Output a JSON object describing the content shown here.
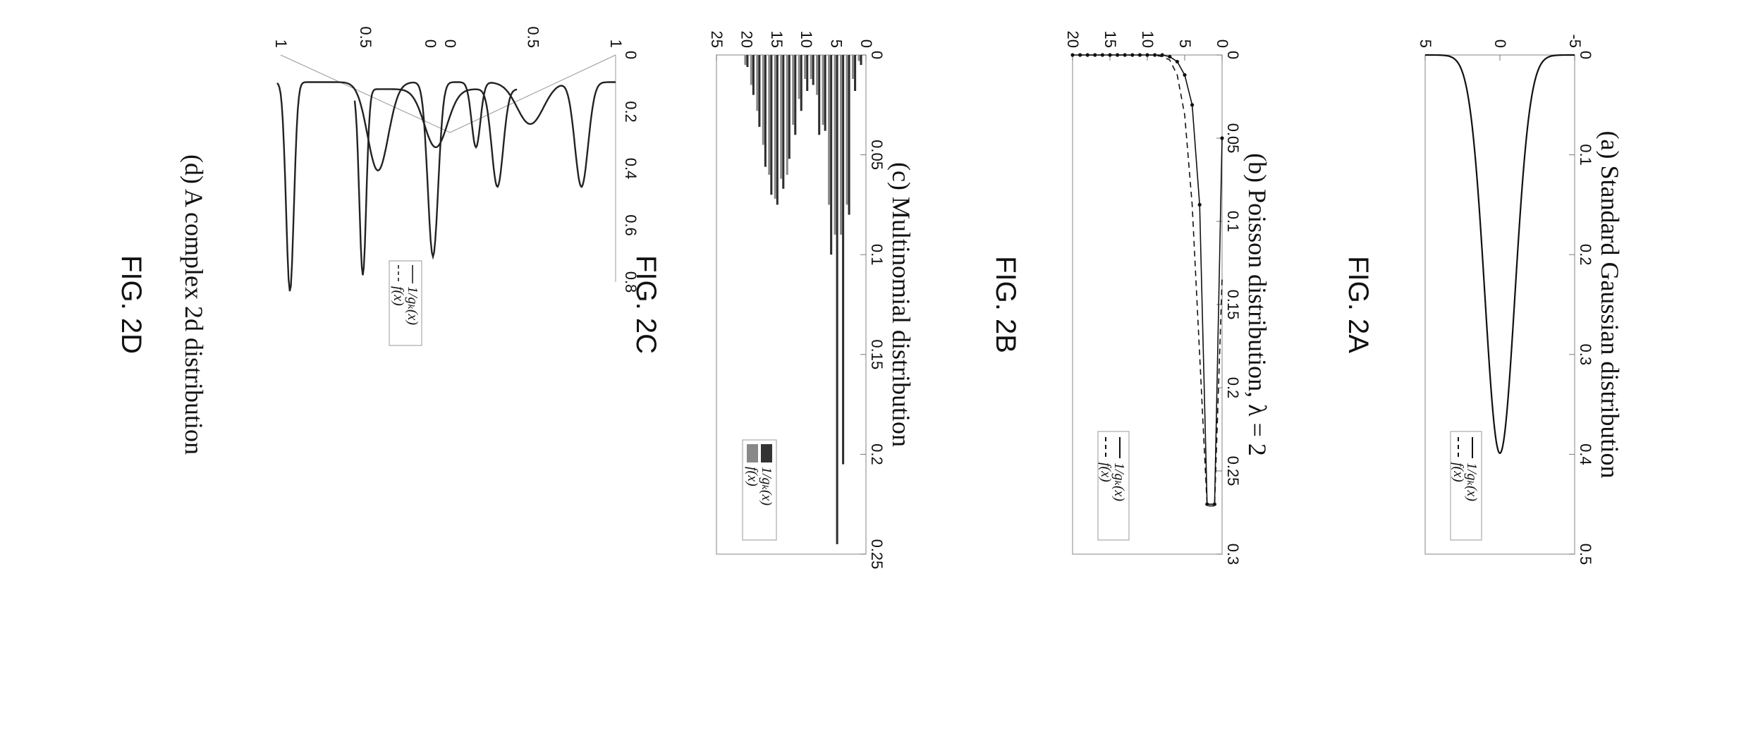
{
  "figures": [
    {
      "id": "A",
      "label": "FIG. 2A",
      "caption": "(a)  Standard Gaussian distribution"
    },
    {
      "id": "B",
      "label": "FIG. 2B",
      "caption": "(b) Poisson distribution, λ = 2"
    },
    {
      "id": "C",
      "label": "FIG. 2C",
      "caption": "(c) Multinomial distribution"
    },
    {
      "id": "D",
      "label": "FIG. 2D",
      "caption": "(d) A complex 2d distribution"
    }
  ],
  "legend": {
    "g": "1/gₖ(x)",
    "f": "f(x)"
  },
  "chart_data": [
    {
      "type": "line",
      "panel": "A",
      "xlim": [
        -5,
        5
      ],
      "ylim": [
        0,
        0.5
      ],
      "xticks": [
        "-5",
        "0",
        "5"
      ],
      "yticks": [
        "0",
        "0.1",
        "0.2",
        "0.3",
        "0.4",
        "0.5"
      ],
      "series": [
        {
          "name": "1/gₖ(x)",
          "style": "solid",
          "function": "normal(0,1)"
        },
        {
          "name": "f(x)",
          "style": "dashed",
          "function": "normal(0,1)"
        }
      ],
      "legend_position": "top-right"
    },
    {
      "type": "line",
      "panel": "B",
      "xlim": [
        0,
        20
      ],
      "ylim": [
        0,
        0.3
      ],
      "xticks": [
        "0",
        "5",
        "10",
        "15",
        "20"
      ],
      "yticks": [
        "0",
        "0.05",
        "0.1",
        "0.15",
        "0.2",
        "0.25",
        "0.3"
      ],
      "x": [
        0,
        1,
        2,
        3,
        4,
        5,
        6,
        7,
        8,
        9,
        10,
        11,
        12,
        13,
        14,
        15,
        16,
        17,
        18,
        19,
        20
      ],
      "series": [
        {
          "name": "1/gₖ(x)",
          "style": "solid-markers",
          "values": [
            0.05,
            0.27,
            0.27,
            0.09,
            0.03,
            0.012,
            0.004,
            0.001,
            0,
            0,
            0,
            0,
            0,
            0,
            0,
            0,
            0,
            0,
            0,
            0,
            0
          ]
        },
        {
          "name": "f(x)",
          "style": "dashed",
          "values": [
            0.135,
            0.271,
            0.271,
            0.18,
            0.09,
            0.036,
            0.012,
            0.003,
            0.001,
            0,
            0,
            0,
            0,
            0,
            0,
            0,
            0,
            0,
            0,
            0,
            0
          ]
        }
      ],
      "legend_position": "top-right"
    },
    {
      "type": "bar",
      "panel": "C",
      "xlim": [
        0,
        25
      ],
      "ylim": [
        0,
        0.25
      ],
      "xticks": [
        "0",
        "5",
        "10",
        "15",
        "20",
        "25"
      ],
      "yticks": [
        "0",
        "0.05",
        "0.1",
        "0.15",
        "0.2",
        "0.25"
      ],
      "x": [
        1,
        2,
        3,
        4,
        5,
        6,
        7,
        8,
        9,
        10,
        11,
        12,
        13,
        14,
        15,
        16,
        17,
        18,
        19,
        20
      ],
      "series": [
        {
          "name": "1/gₖ(x)",
          "values": [
            0.005,
            0.018,
            0.08,
            0.205,
            0.245,
            0.1,
            0.038,
            0.04,
            0.015,
            0.018,
            0.028,
            0.04,
            0.052,
            0.067,
            0.075,
            0.07,
            0.056,
            0.036,
            0.02,
            0.006
          ]
        },
        {
          "name": "f(x)",
          "values": [
            0.003,
            0.012,
            0.075,
            0.09,
            0.09,
            0.075,
            0.035,
            0.02,
            0.012,
            0.012,
            0.022,
            0.035,
            0.06,
            0.062,
            0.072,
            0.06,
            0.045,
            0.028,
            0.015,
            0.005
          ]
        }
      ],
      "legend_position": "top-right"
    },
    {
      "type": "surface",
      "panel": "D",
      "zticks": [
        "0",
        "0.2",
        "0.4",
        "0.6",
        "0.8"
      ],
      "xticks": [
        "1",
        "0.5",
        "0"
      ],
      "yticks": [
        "0",
        "0.5",
        "1"
      ],
      "series": [
        {
          "name": "1/gₖ(x)",
          "style": "solid"
        },
        {
          "name": "f(x)",
          "style": "dashed"
        }
      ],
      "legend_position": "top-right"
    }
  ]
}
